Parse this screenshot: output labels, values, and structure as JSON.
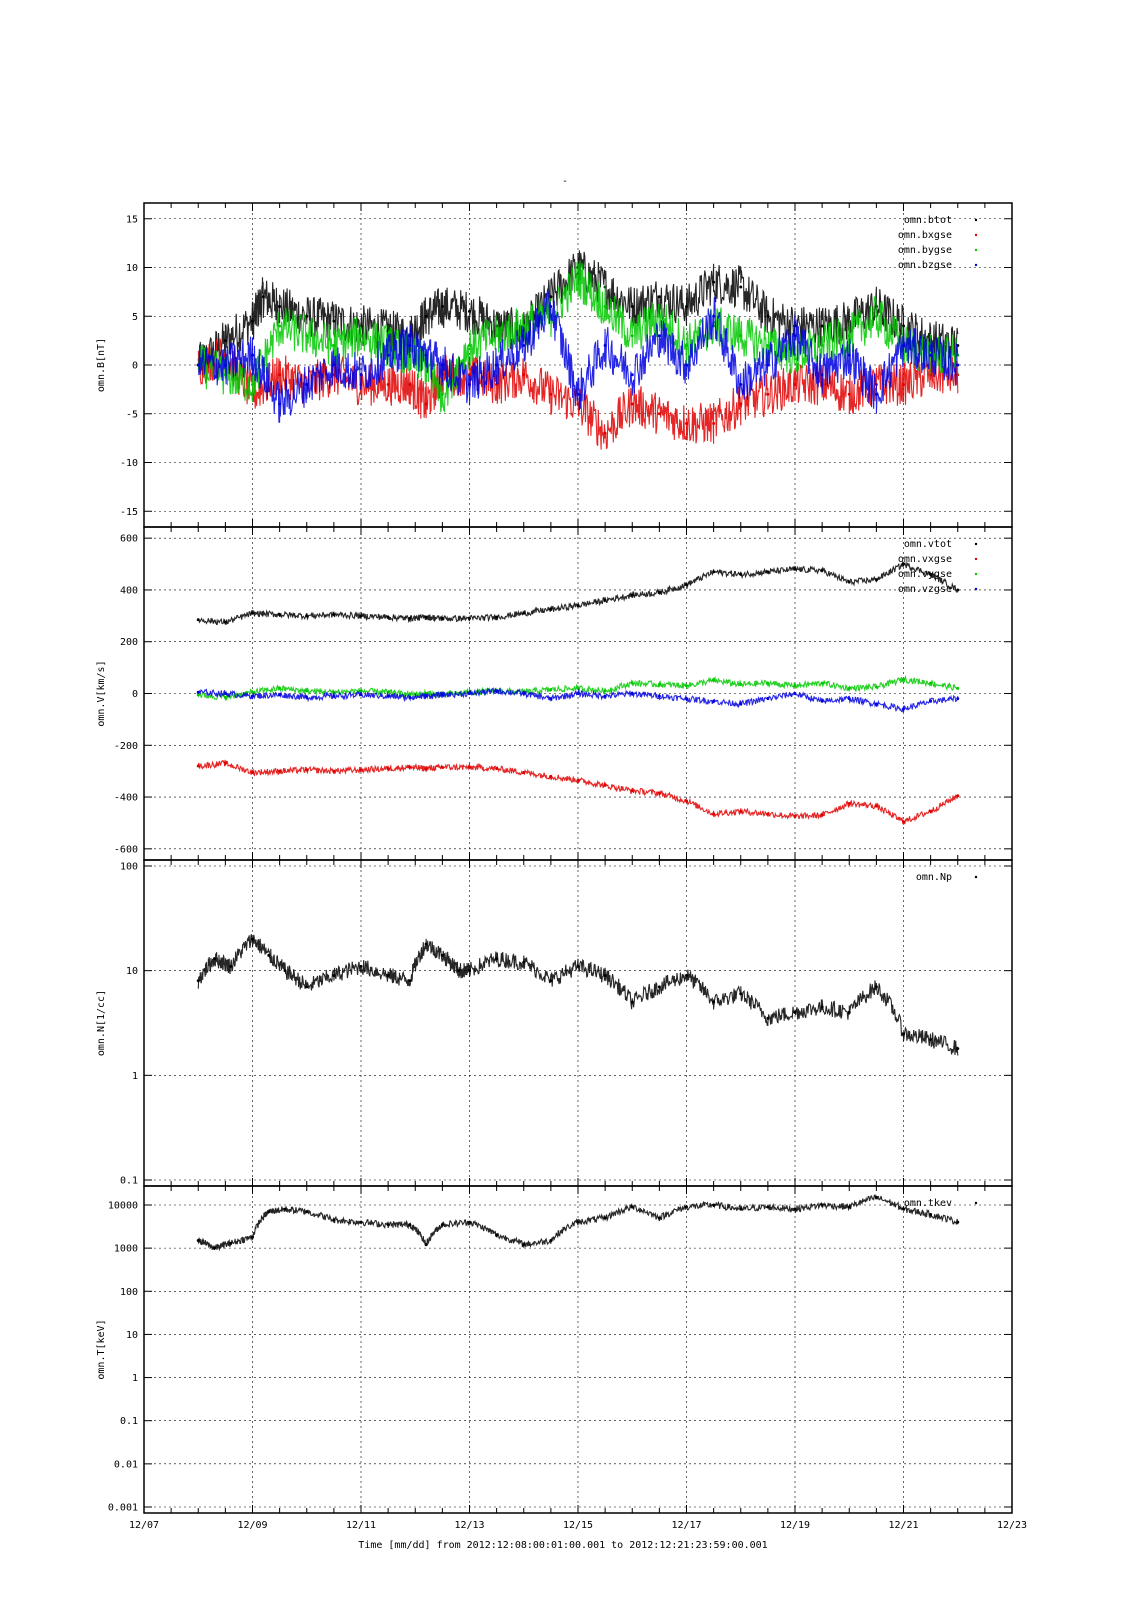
{
  "chart_data": {
    "type": "scatter",
    "title": "-",
    "xlabel": "Time [mm/dd]  from 2012:12:08:00:01:00.001  to  2012:12:21:23:59:00.001",
    "x_ticks": [
      "12/07",
      "12/09",
      "12/11",
      "12/13",
      "12/15",
      "12/17",
      "12/19",
      "12/21",
      "12/23"
    ],
    "x_range_days": [
      7,
      23
    ],
    "panels": [
      {
        "ylabel": "omn.B[nT]",
        "ylim": [
          -16,
          16
        ],
        "yscale": "linear",
        "y_ticks": [
          "15",
          "10",
          "5",
          "0",
          "-5",
          "-10",
          "-15"
        ],
        "legend": "top-right",
        "series": [
          {
            "name": "omn.btot",
            "color": "#000000",
            "x": [
              8,
              8.5,
              9,
              9.2,
              9.5,
              10,
              10.5,
              11,
              11.5,
              11.9,
              12.2,
              12.5,
              13,
              13.5,
              14,
              14.5,
              15,
              15.5,
              16,
              16.5,
              17,
              17.5,
              18,
              18.5,
              19,
              19.5,
              20,
              20.5,
              21,
              21.5,
              22
            ],
            "y": [
              0,
              2.5,
              4.5,
              7,
              6,
              5,
              4.5,
              4,
              3.5,
              3,
              5,
              6,
              5.5,
              4,
              3.5,
              7,
              10,
              8,
              6,
              7,
              6,
              8.5,
              8,
              5,
              4,
              4,
              4.5,
              6,
              4,
              2.5,
              2
            ]
          },
          {
            "name": "omn.bxgse",
            "color": "#e00000",
            "x": [
              8,
              8.5,
              9,
              9.5,
              10,
              10.5,
              11,
              11.5,
              11.9,
              12.2,
              12.5,
              13,
              13.5,
              14,
              14.5,
              15,
              15.5,
              16,
              16.5,
              17,
              17.5,
              18,
              18.5,
              19,
              19.5,
              20,
              20.5,
              21,
              21.5,
              22
            ],
            "y": [
              0,
              1,
              -3,
              -1,
              -2,
              -1,
              -2,
              -2,
              -2,
              -4,
              -1,
              -1,
              -2,
              -1,
              -3,
              -4,
              -7,
              -4,
              -5,
              -6,
              -6,
              -4,
              -3,
              -2,
              -2,
              -3,
              -2,
              -2,
              -1,
              -1
            ]
          },
          {
            "name": "omn.bygse",
            "color": "#00c800",
            "x": [
              8,
              8.5,
              9,
              9.5,
              10,
              10.5,
              11,
              11.5,
              11.9,
              12.2,
              12.5,
              13,
              13.5,
              14,
              14.5,
              15,
              15.5,
              16,
              16.5,
              17,
              17.5,
              18,
              18.5,
              19,
              19.5,
              20,
              20.5,
              21,
              21.5,
              22
            ],
            "y": [
              0,
              -1,
              -2,
              4,
              3,
              2,
              3,
              2,
              1,
              0,
              -3,
              2,
              3,
              4,
              5,
              9,
              6,
              3,
              5,
              2,
              4,
              3,
              2,
              1,
              2,
              3,
              5,
              2,
              1,
              1
            ]
          },
          {
            "name": "omn.bzgse",
            "color": "#0000e0",
            "x": [
              8,
              8.5,
              9,
              9.5,
              10,
              10.5,
              11,
              11.5,
              11.9,
              12.2,
              12.5,
              13,
              13.5,
              14,
              14.5,
              15,
              15.5,
              16,
              16.5,
              17,
              17.5,
              18,
              18.5,
              19,
              19.5,
              20,
              20.5,
              21,
              21.5,
              22
            ],
            "y": [
              0,
              0,
              1,
              -4,
              -2,
              0,
              -1,
              1,
              2,
              1,
              0,
              -2,
              0,
              2,
              6,
              -3,
              2,
              -1,
              3,
              0,
              5,
              -2,
              0,
              3,
              -1,
              1,
              -3,
              2,
              1,
              0
            ]
          }
        ]
      },
      {
        "ylabel": "omn.V[km/s]",
        "ylim": [
          -620,
          620
        ],
        "yscale": "linear",
        "y_ticks": [
          "600",
          "400",
          "200",
          "0",
          "-200",
          "-400",
          "-600"
        ],
        "legend": "top-right",
        "series": [
          {
            "name": "omn.vtot",
            "color": "#000000",
            "x": [
              8,
              8.5,
              9,
              9.5,
              10,
              10.5,
              11,
              11.5,
              11.9,
              12.2,
              12.5,
              13,
              13.5,
              14,
              14.5,
              15,
              15.5,
              16,
              16.5,
              17,
              17.5,
              18,
              18.5,
              19,
              19.5,
              20,
              20.5,
              21,
              21.5,
              22
            ],
            "y": [
              285,
              275,
              310,
              305,
              300,
              305,
              300,
              295,
              290,
              295,
              290,
              290,
              295,
              310,
              325,
              340,
              360,
              380,
              390,
              420,
              470,
              460,
              470,
              480,
              475,
              430,
              440,
              500,
              460,
              400
            ]
          },
          {
            "name": "omn.vxgse",
            "color": "#e00000",
            "x": [
              8,
              8.5,
              9,
              9.5,
              10,
              10.5,
              11,
              11.5,
              11.9,
              12.2,
              12.5,
              13,
              13.5,
              14,
              14.5,
              15,
              15.5,
              16,
              16.5,
              17,
              17.5,
              18,
              18.5,
              19,
              19.5,
              20,
              20.5,
              21,
              21.5,
              22
            ],
            "y": [
              -280,
              -270,
              -305,
              -300,
              -295,
              -300,
              -295,
              -290,
              -285,
              -290,
              -285,
              -285,
              -290,
              -305,
              -320,
              -335,
              -355,
              -375,
              -385,
              -415,
              -465,
              -455,
              -465,
              -475,
              -470,
              -425,
              -435,
              -495,
              -455,
              -395
            ]
          },
          {
            "name": "omn.vygse",
            "color": "#00c800",
            "x": [
              8,
              8.5,
              9,
              9.5,
              10,
              10.5,
              11,
              11.5,
              11.9,
              12.2,
              12.5,
              13,
              13.5,
              14,
              14.5,
              15,
              15.5,
              16,
              16.5,
              17,
              17.5,
              18,
              18.5,
              19,
              19.5,
              20,
              20.5,
              21,
              21.5,
              22
            ],
            "y": [
              -5,
              -15,
              5,
              20,
              10,
              5,
              10,
              5,
              -5,
              0,
              -5,
              5,
              10,
              5,
              15,
              20,
              10,
              40,
              35,
              30,
              50,
              35,
              40,
              30,
              40,
              20,
              25,
              55,
              40,
              20
            ]
          },
          {
            "name": "omn.vzgse",
            "color": "#0000e0",
            "x": [
              8,
              8.5,
              9,
              9.5,
              10,
              10.5,
              11,
              11.5,
              11.9,
              12.2,
              12.5,
              13,
              13.5,
              14,
              14.5,
              15,
              15.5,
              16,
              16.5,
              17,
              17.5,
              18,
              18.5,
              19,
              19.5,
              20,
              20.5,
              21,
              21.5,
              22
            ],
            "y": [
              5,
              0,
              -10,
              -5,
              -15,
              -10,
              -5,
              -10,
              -15,
              -10,
              -5,
              0,
              10,
              0,
              -20,
              0,
              -10,
              0,
              -10,
              -20,
              -30,
              -40,
              -20,
              0,
              -30,
              -20,
              -40,
              -60,
              -30,
              -20
            ]
          }
        ]
      },
      {
        "ylabel": "omn.N[1/cc]",
        "ylim": [
          0.1,
          100
        ],
        "yscale": "log",
        "y_ticks": [
          "100",
          "10",
          "1",
          "0.1"
        ],
        "legend": "top-right",
        "series": [
          {
            "name": "omn.Np",
            "color": "#000000",
            "x": [
              8,
              8.3,
              8.6,
              9,
              9.3,
              9.6,
              10,
              10.5,
              11,
              11.5,
              11.9,
              12.2,
              12.5,
              12.8,
              13,
              13.5,
              14,
              14.5,
              15,
              15.5,
              16,
              16.5,
              17,
              17.5,
              18,
              18.5,
              19,
              19.5,
              20,
              20.5,
              21,
              21.5,
              22
            ],
            "y": [
              8,
              13,
              11,
              20,
              14,
              10,
              7,
              9,
              11,
              9,
              8,
              18,
              14,
              10,
              10,
              13,
              12,
              8,
              11,
              9,
              5,
              7,
              9,
              5,
              6,
              3.5,
              4,
              4.5,
              4,
              7,
              2.5,
              2.2,
              1.8
            ]
          }
        ]
      },
      {
        "ylabel": "omn.T[keV]",
        "ylim": [
          0.001,
          20000
        ],
        "yscale": "log",
        "y_ticks": [
          "10000",
          "1000",
          "100",
          "10",
          "1",
          "0.1",
          "0.01",
          "0.001"
        ],
        "legend": "top-right",
        "series": [
          {
            "name": "omn.tkev",
            "color": "#000000",
            "x": [
              8,
              8.3,
              8.6,
              9,
              9.3,
              9.6,
              10,
              10.5,
              11,
              11.5,
              11.9,
              12.2,
              12.5,
              13,
              13.5,
              14,
              14.5,
              15,
              15.5,
              16,
              16.5,
              17,
              17.5,
              18,
              18.5,
              19,
              19.5,
              20,
              20.5,
              21,
              21.5,
              22
            ],
            "y": [
              1500,
              1000,
              1300,
              1800,
              7000,
              8000,
              7000,
              4500,
              4000,
              3500,
              3500,
              1200,
              3500,
              4000,
              2000,
              1200,
              1500,
              4000,
              5000,
              9000,
              5000,
              9000,
              10000,
              8000,
              9000,
              8000,
              10000,
              9000,
              15000,
              8000,
              6000,
              4000
            ]
          }
        ]
      }
    ]
  }
}
